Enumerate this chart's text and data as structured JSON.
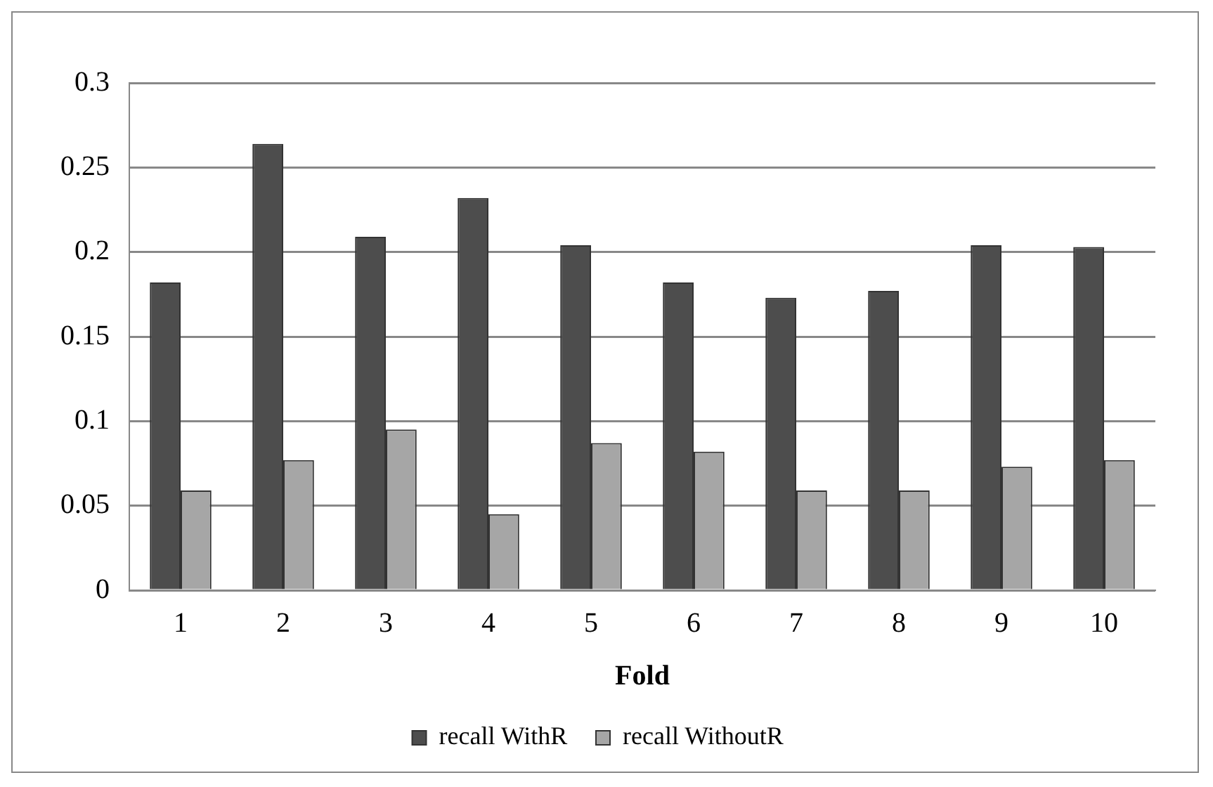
{
  "chart_data": {
    "type": "bar",
    "xlabel": "Fold",
    "categories": [
      "1",
      "2",
      "3",
      "4",
      "5",
      "6",
      "7",
      "8",
      "9",
      "10"
    ],
    "series": [
      {
        "name": "recall WithR",
        "color": "#4d4d4d",
        "values": [
          0.182,
          0.264,
          0.209,
          0.232,
          0.204,
          0.182,
          0.173,
          0.177,
          0.204,
          0.203
        ]
      },
      {
        "name": "recall WithoutR",
        "color": "#a6a6a6",
        "values": [
          0.059,
          0.077,
          0.095,
          0.045,
          0.087,
          0.082,
          0.059,
          0.059,
          0.073,
          0.077
        ]
      }
    ],
    "ylim": [
      0,
      0.3
    ],
    "yticks": [
      0,
      0.05,
      0.1,
      0.15,
      0.2,
      0.25,
      0.3
    ],
    "grid": "y",
    "legend": "bottom"
  }
}
